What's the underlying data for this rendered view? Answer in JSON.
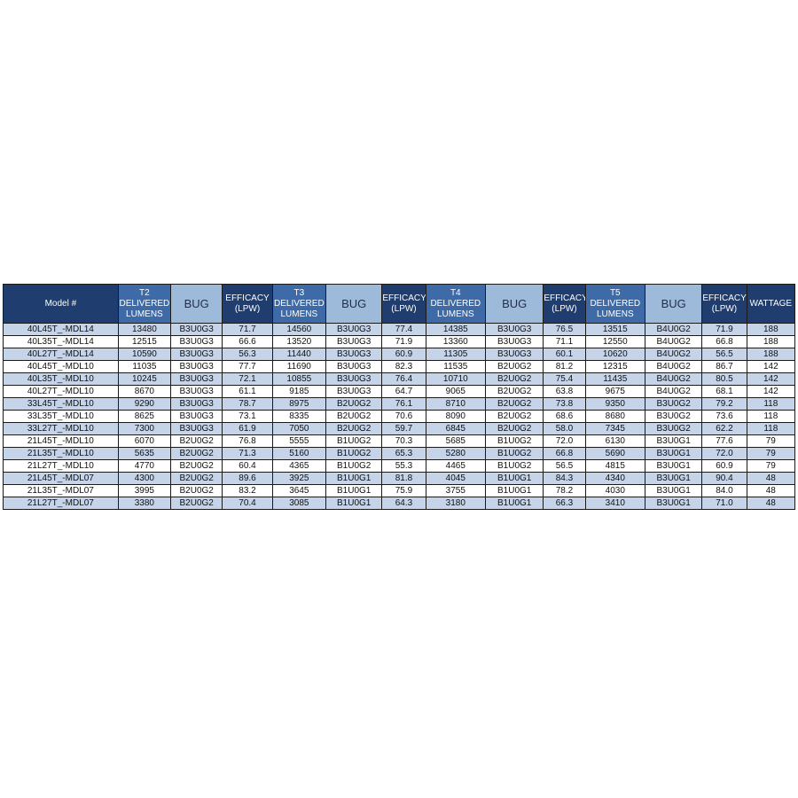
{
  "headers": [
    {
      "label": "Model #",
      "style": "dk"
    },
    {
      "label": "T2 DELIVERED LUMENS",
      "style": "md"
    },
    {
      "label": "BUG",
      "style": "lt"
    },
    {
      "label": "EFFICACY (LPW)",
      "style": "dk"
    },
    {
      "label": "T3 DELIVERED LUMENS",
      "style": "md"
    },
    {
      "label": "BUG",
      "style": "lt"
    },
    {
      "label": "EFFICACY (LPW)",
      "style": "dk"
    },
    {
      "label": "T4 DELIVERED LUMENS",
      "style": "md"
    },
    {
      "label": "BUG",
      "style": "lt"
    },
    {
      "label": "EFFICACY (LPW)",
      "style": "dk"
    },
    {
      "label": "T5 DELIVERED LUMENS",
      "style": "md"
    },
    {
      "label": "BUG",
      "style": "lt"
    },
    {
      "label": "EFFICACY (LPW)",
      "style": "dk"
    },
    {
      "label": "WATTAGE",
      "style": "dk"
    }
  ],
  "rows": [
    [
      "40L45T_-MDL14",
      "13480",
      "B3U0G3",
      "71.7",
      "14560",
      "B3U0G3",
      "77.4",
      "14385",
      "B3U0G3",
      "76.5",
      "13515",
      "B4U0G2",
      "71.9",
      "188"
    ],
    [
      "40L35T_-MDL14",
      "12515",
      "B3U0G3",
      "66.6",
      "13520",
      "B3U0G3",
      "71.9",
      "13360",
      "B3U0G3",
      "71.1",
      "12550",
      "B4U0G2",
      "66.8",
      "188"
    ],
    [
      "40L27T_-MDL14",
      "10590",
      "B3U0G3",
      "56.3",
      "11440",
      "B3U0G3",
      "60.9",
      "11305",
      "B3U0G3",
      "60.1",
      "10620",
      "B4U0G2",
      "56.5",
      "188"
    ],
    [
      "40L45T_-MDL10",
      "11035",
      "B3U0G3",
      "77.7",
      "11690",
      "B3U0G3",
      "82.3",
      "11535",
      "B2U0G2",
      "81.2",
      "12315",
      "B4U0G2",
      "86.7",
      "142"
    ],
    [
      "40L35T_-MDL10",
      "10245",
      "B3U0G3",
      "72.1",
      "10855",
      "B3U0G3",
      "76.4",
      "10710",
      "B2U0G2",
      "75.4",
      "11435",
      "B4U0G2",
      "80.5",
      "142"
    ],
    [
      "40L27T_-MDL10",
      "8670",
      "B3U0G3",
      "61.1",
      "9185",
      "B3U0G3",
      "64.7",
      "9065",
      "B2U0G2",
      "63.8",
      "9675",
      "B4U0G2",
      "68.1",
      "142"
    ],
    [
      "33L45T_-MDL10",
      "9290",
      "B3U0G3",
      "78.7",
      "8975",
      "B2U0G2",
      "76.1",
      "8710",
      "B2U0G2",
      "73.8",
      "9350",
      "B3U0G2",
      "79.2",
      "118"
    ],
    [
      "33L35T_-MDL10",
      "8625",
      "B3U0G3",
      "73.1",
      "8335",
      "B2U0G2",
      "70.6",
      "8090",
      "B2U0G2",
      "68.6",
      "8680",
      "B3U0G2",
      "73.6",
      "118"
    ],
    [
      "33L27T_-MDL10",
      "7300",
      "B3U0G3",
      "61.9",
      "7050",
      "B2U0G2",
      "59.7",
      "6845",
      "B2U0G2",
      "58.0",
      "7345",
      "B3U0G2",
      "62.2",
      "118"
    ],
    [
      "21L45T_-MDL10",
      "6070",
      "B2U0G2",
      "76.8",
      "5555",
      "B1U0G2",
      "70.3",
      "5685",
      "B1U0G2",
      "72.0",
      "6130",
      "B3U0G1",
      "77.6",
      "79"
    ],
    [
      "21L35T_-MDL10",
      "5635",
      "B2U0G2",
      "71.3",
      "5160",
      "B1U0G2",
      "65.3",
      "5280",
      "B1U0G2",
      "66.8",
      "5690",
      "B3U0G1",
      "72.0",
      "79"
    ],
    [
      "21L27T_-MDL10",
      "4770",
      "B2U0G2",
      "60.4",
      "4365",
      "B1U0G2",
      "55.3",
      "4465",
      "B1U0G2",
      "56.5",
      "4815",
      "B3U0G1",
      "60.9",
      "79"
    ],
    [
      "21L45T_-MDL07",
      "4300",
      "B2U0G2",
      "89.6",
      "3925",
      "B1U0G1",
      "81.8",
      "4045",
      "B1U0G1",
      "84.3",
      "4340",
      "B3U0G1",
      "90.4",
      "48"
    ],
    [
      "21L35T_-MDL07",
      "3995",
      "B2U0G2",
      "83.2",
      "3645",
      "B1U0G1",
      "75.9",
      "3755",
      "B1U0G1",
      "78.2",
      "4030",
      "B3U0G1",
      "84.0",
      "48"
    ],
    [
      "21L27T_-MDL07",
      "3380",
      "B2U0G2",
      "70.4",
      "3085",
      "B1U0G1",
      "64.3",
      "3180",
      "B1U0G1",
      "66.3",
      "3410",
      "B3U0G1",
      "71.0",
      "48"
    ]
  ]
}
